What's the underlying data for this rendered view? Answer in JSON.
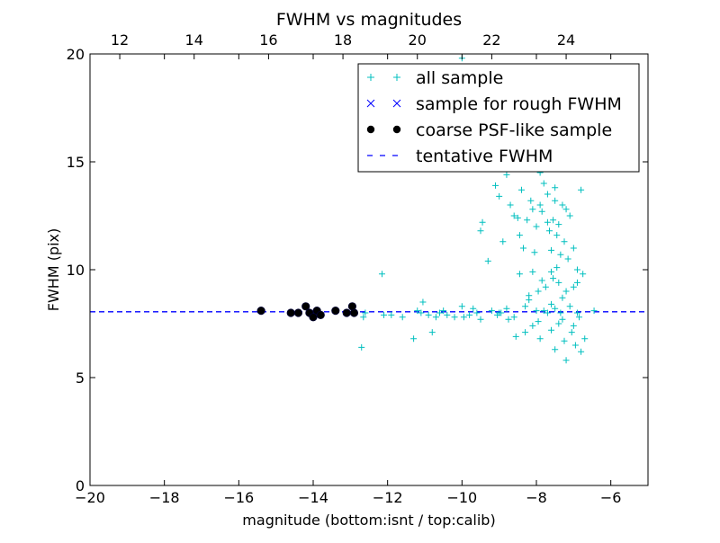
{
  "chart_data": {
    "type": "scatter",
    "title": "FWHM vs magnitudes",
    "xlabel": "magnitude (bottom:isnt / top:calib)",
    "ylabel": "FWHM (pix)",
    "xlim": [
      -20,
      -5
    ],
    "ylim": [
      0,
      20
    ],
    "x_ticks": [
      -20,
      -18,
      -16,
      -14,
      -12,
      -10,
      -8,
      -6
    ],
    "y_ticks": [
      0,
      5,
      10,
      15,
      20
    ],
    "top_axis": {
      "ticks": [
        12,
        14,
        16,
        18,
        20,
        22,
        24
      ],
      "offset": 31.2
    },
    "grid": false,
    "legend_position": "top-right",
    "legend": [
      {
        "label": "all sample",
        "marker": "plus",
        "color": "#00bfbf"
      },
      {
        "label": "sample for rough FWHM",
        "marker": "x",
        "color": "#0000ff"
      },
      {
        "label": "coarse PSF-like sample",
        "marker": "dot",
        "color": "#000000"
      },
      {
        "label": "tentative FWHM",
        "marker": "dashed-line",
        "color": "#0000ff"
      }
    ],
    "tentative_fwhm": 8.05,
    "series": [
      {
        "name": "all sample",
        "marker": "plus",
        "color": "#00bfbf",
        "points": [
          [
            -15.4,
            8.1
          ],
          [
            -14.6,
            8.0
          ],
          [
            -14.4,
            8.0
          ],
          [
            -14.2,
            8.3
          ],
          [
            -14.1,
            8.0
          ],
          [
            -14.0,
            7.8
          ],
          [
            -13.9,
            8.1
          ],
          [
            -13.8,
            7.9
          ],
          [
            -13.4,
            8.1
          ],
          [
            -13.1,
            8.0
          ],
          [
            -12.9,
            8.0
          ],
          [
            -12.95,
            8.3
          ],
          [
            -12.7,
            6.4
          ],
          [
            -12.65,
            7.8
          ],
          [
            -12.6,
            8.0
          ],
          [
            -12.15,
            9.8
          ],
          [
            -12.1,
            7.9
          ],
          [
            -11.9,
            7.9
          ],
          [
            -11.6,
            7.8
          ],
          [
            -11.3,
            6.8
          ],
          [
            -11.2,
            8.1
          ],
          [
            -11.1,
            8.0
          ],
          [
            -11.05,
            8.5
          ],
          [
            -10.9,
            7.9
          ],
          [
            -10.8,
            7.1
          ],
          [
            -10.7,
            7.8
          ],
          [
            -10.6,
            8.0
          ],
          [
            -10.5,
            8.1
          ],
          [
            -10.4,
            7.9
          ],
          [
            -10.2,
            7.8
          ],
          [
            -10.0,
            8.3
          ],
          [
            -9.95,
            7.8
          ],
          [
            -9.8,
            7.9
          ],
          [
            -9.7,
            8.2
          ],
          [
            -9.6,
            8.0
          ],
          [
            -9.5,
            7.7
          ],
          [
            -9.5,
            11.8
          ],
          [
            -9.45,
            12.2
          ],
          [
            -9.3,
            10.4
          ],
          [
            -9.2,
            8.1
          ],
          [
            -9.1,
            13.9
          ],
          [
            -9.05,
            7.9
          ],
          [
            -9.0,
            13.4
          ],
          [
            -8.95,
            8.0
          ],
          [
            -8.9,
            11.3
          ],
          [
            -8.8,
            14.4
          ],
          [
            -8.75,
            7.7
          ],
          [
            -8.7,
            13.0
          ],
          [
            -8.6,
            12.5
          ],
          [
            -8.6,
            7.8
          ],
          [
            -8.55,
            6.9
          ],
          [
            -8.5,
            12.4
          ],
          [
            -8.45,
            11.6
          ],
          [
            -8.45,
            9.8
          ],
          [
            -8.4,
            13.7
          ],
          [
            -8.35,
            11.0
          ],
          [
            -8.3,
            7.1
          ],
          [
            -8.3,
            8.3
          ],
          [
            -8.25,
            12.3
          ],
          [
            -8.2,
            8.8
          ],
          [
            -8.15,
            13.2
          ],
          [
            -8.1,
            9.9
          ],
          [
            -8.1,
            7.4
          ],
          [
            -8.05,
            10.8
          ],
          [
            -8.0,
            12.0
          ],
          [
            -8.0,
            8.1
          ],
          [
            -7.95,
            9.0
          ],
          [
            -7.9,
            6.8
          ],
          [
            -7.9,
            13.0
          ],
          [
            -7.85,
            9.5
          ],
          [
            -7.85,
            12.7
          ],
          [
            -7.8,
            8.1
          ],
          [
            -7.8,
            14.0
          ],
          [
            -7.75,
            9.2
          ],
          [
            -7.7,
            8.0
          ],
          [
            -7.7,
            13.5
          ],
          [
            -7.65,
            11.8
          ],
          [
            -7.6,
            10.9
          ],
          [
            -7.6,
            9.9
          ],
          [
            -7.6,
            7.2
          ],
          [
            -7.55,
            12.3
          ],
          [
            -7.55,
            9.6
          ],
          [
            -7.5,
            8.2
          ],
          [
            -7.5,
            13.2
          ],
          [
            -7.5,
            6.3
          ],
          [
            -7.45,
            11.6
          ],
          [
            -7.45,
            10.1
          ],
          [
            -7.4,
            9.4
          ],
          [
            -7.4,
            12.1
          ],
          [
            -7.4,
            7.5
          ],
          [
            -7.35,
            8.0
          ],
          [
            -7.35,
            10.7
          ],
          [
            -7.3,
            13.0
          ],
          [
            -7.3,
            8.7
          ],
          [
            -7.25,
            11.3
          ],
          [
            -7.25,
            6.7
          ],
          [
            -7.2,
            9.0
          ],
          [
            -7.2,
            5.8
          ],
          [
            -7.15,
            10.5
          ],
          [
            -7.1,
            8.3
          ],
          [
            -7.1,
            12.5
          ],
          [
            -7.05,
            7.1
          ],
          [
            -7.0,
            9.2
          ],
          [
            -7.0,
            11.0
          ],
          [
            -6.95,
            6.5
          ],
          [
            -6.9,
            8.0
          ],
          [
            -6.9,
            10.0
          ],
          [
            -6.85,
            7.8
          ],
          [
            -6.8,
            6.2
          ],
          [
            -6.8,
            13.7
          ],
          [
            -6.75,
            9.8
          ],
          [
            -6.7,
            6.8
          ],
          [
            -6.45,
            8.1
          ],
          [
            -9.0,
            8.0
          ],
          [
            -8.8,
            8.2
          ],
          [
            -8.2,
            8.6
          ],
          [
            -7.95,
            7.6
          ],
          [
            -7.6,
            8.4
          ],
          [
            -7.3,
            7.7
          ],
          [
            -10.0,
            19.8
          ],
          [
            -8.7,
            14.9
          ],
          [
            -7.9,
            14.5
          ],
          [
            -7.5,
            13.8
          ],
          [
            -7.2,
            12.8
          ],
          [
            -8.1,
            12.8
          ],
          [
            -7.7,
            12.2
          ],
          [
            -6.9,
            9.4
          ],
          [
            -7.0,
            7.4
          ]
        ]
      },
      {
        "name": "coarse PSF-like sample",
        "marker": "dot",
        "color": "#000000",
        "points": [
          [
            -15.4,
            8.1
          ],
          [
            -14.6,
            8.0
          ],
          [
            -14.4,
            8.0
          ],
          [
            -14.2,
            8.3
          ],
          [
            -14.1,
            8.0
          ],
          [
            -14.0,
            7.8
          ],
          [
            -13.9,
            8.1
          ],
          [
            -13.8,
            7.9
          ],
          [
            -13.4,
            8.1
          ],
          [
            -13.1,
            8.0
          ],
          [
            -12.9,
            8.0
          ],
          [
            -12.95,
            8.3
          ]
        ]
      }
    ]
  }
}
